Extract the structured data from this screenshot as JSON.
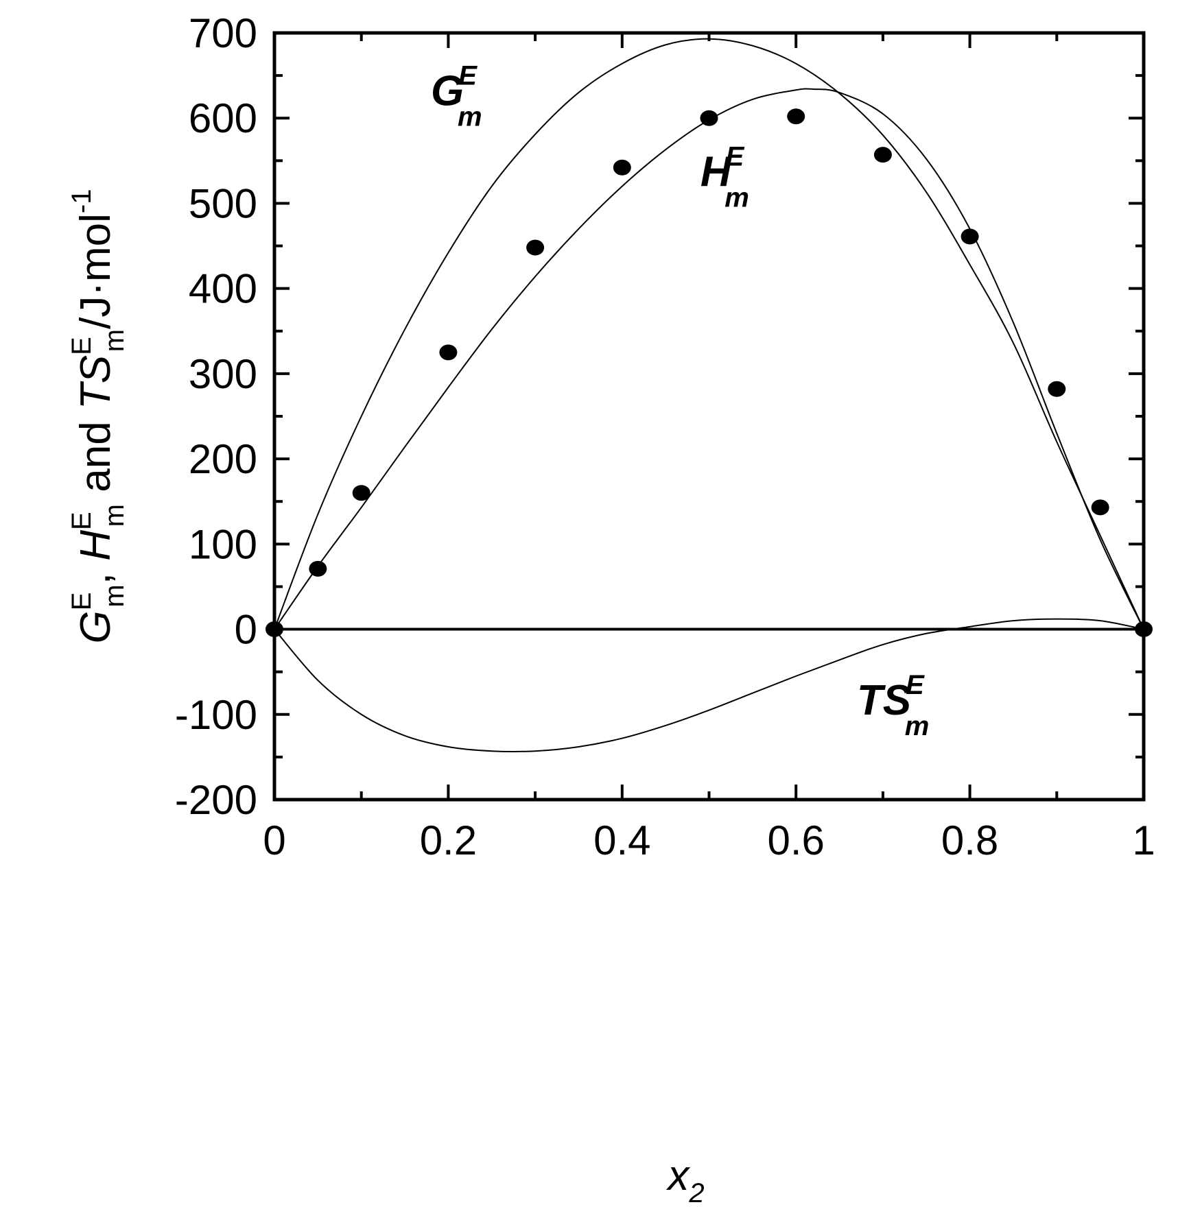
{
  "chart_data": {
    "type": "scatter",
    "xlim": [
      0,
      1
    ],
    "ylim": [
      -200,
      700
    ],
    "x_ticks": [
      "0",
      "0.2",
      "0.4",
      "0.6",
      "0.8",
      "1"
    ],
    "y_ticks": [
      "-200",
      "-100",
      "0",
      "100",
      "200",
      "300",
      "400",
      "500",
      "600",
      "700"
    ],
    "xlabel": {
      "main": "x",
      "sub": "2"
    },
    "ylabel": {
      "g_main": "G",
      "g_sup": "E",
      "g_sub": "m",
      "sep1": ", ",
      "h_main": "H",
      "h_sup": "E",
      "h_sub": "m",
      "and": " and ",
      "ts_main": "TS",
      "ts_sup": "E",
      "ts_sub": "m",
      "unit": "/J·mol",
      "unit_sup": "-1"
    },
    "annotations": [
      {
        "id": "g",
        "main": "G",
        "sup": "E",
        "sub": "m",
        "x": 0.18,
        "y": 615
      },
      {
        "id": "h",
        "main": "H",
        "sup": "E",
        "sub": "m",
        "x": 0.49,
        "y": 520
      },
      {
        "id": "ts",
        "main": "TS",
        "sup": "E",
        "sub": "m",
        "x": 0.67,
        "y": -100
      }
    ],
    "series": [
      {
        "id": "points",
        "kind": "scatter",
        "x": [
          0,
          0.05,
          0.1,
          0.2,
          0.3,
          0.4,
          0.5,
          0.6,
          0.7,
          0.8,
          0.9,
          0.95,
          1.0
        ],
        "y": [
          0,
          71,
          160,
          325,
          448,
          542,
          600,
          602,
          557,
          461,
          282,
          143,
          0
        ]
      },
      {
        "id": "G",
        "kind": "line",
        "x": [
          0,
          0.05,
          0.1,
          0.15,
          0.2,
          0.25,
          0.3,
          0.35,
          0.4,
          0.45,
          0.5,
          0.55,
          0.6,
          0.65,
          0.7,
          0.75,
          0.8,
          0.85,
          0.9,
          0.95,
          1.0
        ],
        "y": [
          0,
          135,
          250,
          352,
          442,
          520,
          581,
          630,
          664,
          686,
          693,
          685,
          664,
          629,
          580,
          513,
          428,
          336,
          220,
          110,
          0
        ]
      },
      {
        "id": "H",
        "kind": "line",
        "x": [
          0,
          0.05,
          0.1,
          0.15,
          0.2,
          0.25,
          0.3,
          0.35,
          0.4,
          0.45,
          0.5,
          0.55,
          0.6,
          0.62,
          0.65,
          0.7,
          0.75,
          0.8,
          0.85,
          0.9,
          0.95,
          1.0
        ],
        "y": [
          0,
          74,
          143,
          214,
          284,
          352,
          414,
          470,
          520,
          563,
          598,
          622,
          633,
          634,
          630,
          605,
          552,
          470,
          360,
          230,
          105,
          0
        ]
      },
      {
        "id": "TS",
        "kind": "line",
        "x": [
          0,
          0.05,
          0.1,
          0.15,
          0.2,
          0.25,
          0.3,
          0.35,
          0.4,
          0.45,
          0.5,
          0.55,
          0.6,
          0.65,
          0.7,
          0.75,
          0.8,
          0.85,
          0.9,
          0.95,
          1.0
        ],
        "y": [
          0,
          -60,
          -100,
          -125,
          -138,
          -143,
          -143,
          -138,
          -128,
          -113,
          -95,
          -75,
          -55,
          -36,
          -18,
          -5,
          3,
          10,
          12,
          10,
          0
        ]
      }
    ]
  }
}
